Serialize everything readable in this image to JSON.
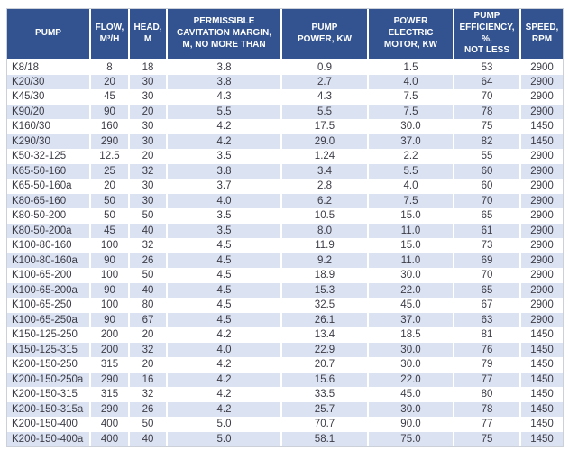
{
  "chart_data": {
    "type": "table",
    "columns": [
      {
        "key": "pump",
        "label": "PUMP"
      },
      {
        "key": "flow",
        "label": "FLOW,\nM³/H"
      },
      {
        "key": "head",
        "label": "HEAD,\nM"
      },
      {
        "key": "cavitation",
        "label": "PERMISSIBLE\nCAVITATION MARGIN,\nM, NO MORE THAN"
      },
      {
        "key": "power",
        "label": "PUMP\nPOWER, KW"
      },
      {
        "key": "motor",
        "label": "POWER\nELECTRIC\nMOTOR, KW"
      },
      {
        "key": "efficiency",
        "label": "PUMP\nEFFICIENCY, %,\nNOT LESS"
      },
      {
        "key": "speed",
        "label": "SPEED,\nRPM"
      }
    ],
    "rows": [
      [
        "K8/18",
        "8",
        "18",
        "3.8",
        "0.9",
        "1.5",
        "53",
        "2900"
      ],
      [
        "K20/30",
        "20",
        "30",
        "3.8",
        "2.7",
        "4.0",
        "64",
        "2900"
      ],
      [
        "K45/30",
        "45",
        "30",
        "4.3",
        "4.3",
        "7.5",
        "70",
        "2900"
      ],
      [
        "K90/20",
        "90",
        "20",
        "5.5",
        "5.5",
        "7.5",
        "78",
        "2900"
      ],
      [
        "K160/30",
        "160",
        "30",
        "4.2",
        "17.5",
        "30.0",
        "75",
        "1450"
      ],
      [
        "K290/30",
        "290",
        "30",
        "4.2",
        "29.0",
        "37.0",
        "82",
        "1450"
      ],
      [
        "K50-32-125",
        "12.5",
        "20",
        "3.5",
        "1.24",
        "2.2",
        "55",
        "2900"
      ],
      [
        "K65-50-160",
        "25",
        "32",
        "3.8",
        "3.4",
        "5.5",
        "60",
        "2900"
      ],
      [
        "K65-50-160a",
        "20",
        "30",
        "3.7",
        "2.8",
        "4.0",
        "60",
        "2900"
      ],
      [
        "K80-65-160",
        "50",
        "30",
        "4.0",
        "6.2",
        "7.5",
        "70",
        "2900"
      ],
      [
        "K80-50-200",
        "50",
        "50",
        "3.5",
        "10.5",
        "15.0",
        "65",
        "2900"
      ],
      [
        "K80-50-200a",
        "45",
        "40",
        "3.5",
        "8.0",
        "11.0",
        "61",
        "2900"
      ],
      [
        "K100-80-160",
        "100",
        "32",
        "4.5",
        "11.9",
        "15.0",
        "73",
        "2900"
      ],
      [
        "K100-80-160a",
        "90",
        "26",
        "4.5",
        "9.2",
        "11.0",
        "69",
        "2900"
      ],
      [
        "K100-65-200",
        "100",
        "50",
        "4.5",
        "18.9",
        "30.0",
        "70",
        "2900"
      ],
      [
        "K100-65-200a",
        "90",
        "40",
        "4.5",
        "15.3",
        "22.0",
        "65",
        "2900"
      ],
      [
        "K100-65-250",
        "100",
        "80",
        "4.5",
        "32.5",
        "45.0",
        "67",
        "2900"
      ],
      [
        "K100-65-250a",
        "90",
        "67",
        "4.5",
        "26.1",
        "37.0",
        "63",
        "2900"
      ],
      [
        "K150-125-250",
        "200",
        "20",
        "4.2",
        "13.4",
        "18.5",
        "81",
        "1450"
      ],
      [
        "K150-125-315",
        "200",
        "32",
        "4.0",
        "22.9",
        "30.0",
        "76",
        "1450"
      ],
      [
        "K200-150-250",
        "315",
        "20",
        "4.2",
        "20.7",
        "30.0",
        "79",
        "1450"
      ],
      [
        "K200-150-250a",
        "290",
        "16",
        "4.2",
        "15.6",
        "22.0",
        "77",
        "1450"
      ],
      [
        "K200-150-315",
        "315",
        "32",
        "4.2",
        "33.5",
        "45.0",
        "80",
        "1450"
      ],
      [
        "K200-150-315a",
        "290",
        "26",
        "4.2",
        "25.7",
        "30.0",
        "78",
        "1450"
      ],
      [
        "K200-150-400",
        "400",
        "50",
        "5.0",
        "70.7",
        "90.0",
        "77",
        "1450"
      ],
      [
        "K200-150-400a",
        "400",
        "40",
        "5.0",
        "58.1",
        "75.0",
        "75",
        "1450"
      ]
    ],
    "layout_hints": {
      "header_rows": 1,
      "alternating_row_shading": true,
      "first_data_row_shading": "white",
      "numeric_columns_alignment": "center",
      "pump_column_alignment": "left"
    }
  },
  "colors": {
    "header_background": "#325390",
    "header_text": "#ffffff",
    "row_alternate_background": "#dbe2f2",
    "row_background": "#ffffff",
    "cell_text": "#3c3c46",
    "column_separator": "#ffffff",
    "outer_border": "#ccd0d8"
  }
}
